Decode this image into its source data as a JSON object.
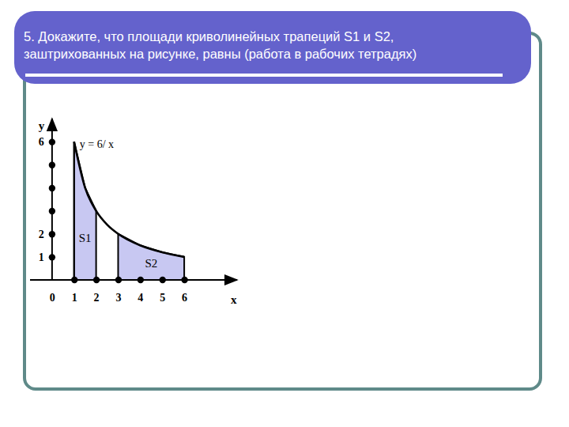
{
  "slide": {
    "title_lines": [
      "5. Докажите, что площади криволинейных трапеций S1  и S2,",
      "заштрихованных на рисунке, равны (работа в рабочих тетрадях)"
    ]
  },
  "chart_data": {
    "type": "line",
    "x": [
      1,
      1.5,
      2,
      2.5,
      3,
      4,
      5,
      6
    ],
    "series": [
      {
        "name": "y = 6/ x",
        "color": "#000000",
        "values": [
          6,
          4,
          3,
          2.4,
          2,
          1.5,
          1.2,
          1
        ]
      }
    ],
    "regions": [
      {
        "name": "S1",
        "x": [
          1,
          2
        ],
        "color": "#c8c8f2"
      },
      {
        "name": "S2",
        "x": [
          3,
          6
        ],
        "color": "#c8c8f2"
      }
    ],
    "xlim": [
      -1,
      8.4
    ],
    "ylim": [
      0,
      7
    ],
    "xticks": [
      0,
      1,
      2,
      3,
      4,
      5,
      6
    ],
    "yticks": [
      1,
      2,
      {
        "value": 3,
        "label": null
      },
      {
        "value": 4,
        "label": null
      },
      {
        "value": 5,
        "label": null
      },
      6
    ],
    "x_label": "x",
    "y_label": "y",
    "grid": false
  }
}
